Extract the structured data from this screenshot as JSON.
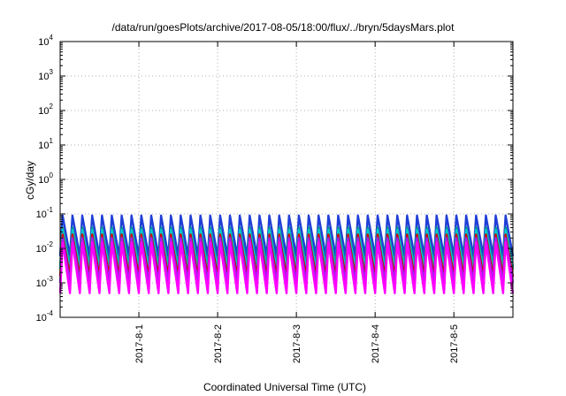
{
  "chart_data": {
    "type": "line",
    "title": "/data/run/goesPlots/archive/2017-08-05/18:00/flux/../bryn/5daysMars.plot",
    "xlabel": "Coordinated Universal Time (UTC)",
    "ylabel": "cGy/day",
    "yscale": "log",
    "ylim": [
      0.0001,
      10000
    ],
    "y_ticks": [
      {
        "value": 0.0001,
        "base": "10",
        "exp": "-4"
      },
      {
        "value": 0.001,
        "base": "10",
        "exp": "-3"
      },
      {
        "value": 0.01,
        "base": "10",
        "exp": "-2"
      },
      {
        "value": 0.1,
        "base": "10",
        "exp": "-1"
      },
      {
        "value": 1,
        "base": "10",
        "exp": "0"
      },
      {
        "value": 10,
        "base": "10",
        "exp": "1"
      },
      {
        "value": 100,
        "base": "10",
        "exp": "2"
      },
      {
        "value": 1000,
        "base": "10",
        "exp": "3"
      },
      {
        "value": 10000,
        "base": "10",
        "exp": "4"
      }
    ],
    "xlim": [
      "2017-07-31T00:00",
      "2017-08-05T18:00"
    ],
    "x_ticks": [
      {
        "value": "2017-08-01T00:00",
        "label": "2017-8-1"
      },
      {
        "value": "2017-08-02T00:00",
        "label": "2017-8-2"
      },
      {
        "value": "2017-08-03T00:00",
        "label": "2017-8-3"
      },
      {
        "value": "2017-08-04T00:00",
        "label": "2017-8-4"
      },
      {
        "value": "2017-08-05T00:00",
        "label": "2017-8-5"
      }
    ],
    "grid": true,
    "legend": "none",
    "oscillation": {
      "cycles_per_day": 8,
      "shape": "sawtooth"
    },
    "series": [
      {
        "color": "#1f3fd6",
        "peak": 0.09,
        "trough": 0.006
      },
      {
        "color": "#008b8b",
        "peak": 0.04,
        "trough": 0.003
      },
      {
        "color": "#00c8c8",
        "peak": 0.035,
        "trough": 0.0025
      },
      {
        "color": "#d40000",
        "peak": 0.025,
        "trough": 0.0015
      },
      {
        "color": "#a020f0",
        "peak": 0.02,
        "trough": 0.001
      },
      {
        "color": "#ff00ff",
        "peak": 0.015,
        "trough": 0.0005
      }
    ]
  }
}
